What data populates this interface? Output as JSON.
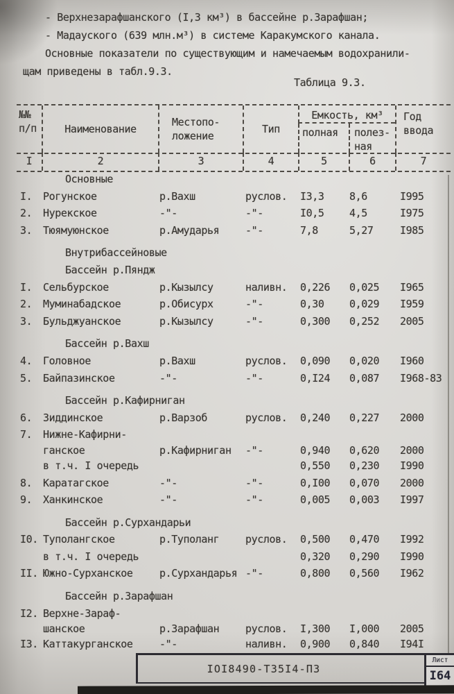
{
  "colors": {
    "paper": "#d6d4d0",
    "ink": "#36332f",
    "frame_ink": "#2c2b31"
  },
  "page": {
    "intro": [
      "- Верхнезарафшанского (I,3 км³) в бассейне р.Зарафшан;",
      "- Мадауского (639 млн.м³) в системе Каракумского канала.",
      "Основные показатели по существующим и намечаемым водохранили-",
      "щам приведены в табл.9.3."
    ],
    "caption": "Таблица 9.3."
  },
  "table": {
    "headers": {
      "num": [
        "№№",
        "п/п"
      ],
      "name": "Наименование",
      "location": [
        "Местопо-",
        "ложение"
      ],
      "type": "Тип",
      "capacity_group": "Емкость, км³",
      "capacity_full": "полная",
      "capacity_useful": [
        "полез-",
        "ная"
      ],
      "year": [
        "Год",
        "ввода"
      ]
    },
    "col_numbers": [
      "I",
      "2",
      "3",
      "4",
      "5",
      "6",
      "7"
    ],
    "sections": [
      {
        "headings": [
          "Основные"
        ],
        "rows": [
          {
            "num": "I.",
            "name": "Рогунское",
            "loc": "р.Вахш",
            "type": "руслов.",
            "full": "I3,3",
            "useful": "8,6",
            "year": "I995"
          },
          {
            "num": "2.",
            "name": "Нурекское",
            "loc": "-\"-",
            "type": "-\"-",
            "full": "I0,5",
            "useful": "4,5",
            "year": "I975"
          },
          {
            "num": "3.",
            "name": "Тюямуюнское",
            "loc": "р.Амударья",
            "type": "-\"-",
            "full": "7,8",
            "useful": "5,27",
            "year": "I985"
          }
        ]
      },
      {
        "headings": [
          "Внутрибассейновые",
          "Бассейн р.Пяндж"
        ],
        "rows": [
          {
            "num": "I.",
            "name": "Сельбурское",
            "loc": "р.Кызылсу",
            "type": "наливн.",
            "full": "0,226",
            "useful": "0,025",
            "year": "I965"
          },
          {
            "num": "2.",
            "name": "Муминабадское",
            "loc": "р.Обисурх",
            "type": "-\"-",
            "full": "0,30",
            "useful": "0,029",
            "year": "I959"
          },
          {
            "num": "3.",
            "name": "Бульджуанское",
            "loc": "р.Кызылсу",
            "type": "-\"-",
            "full": "0,300",
            "useful": "0,252",
            "year": "2005"
          }
        ]
      },
      {
        "headings": [
          "Бассейн р.Вахш"
        ],
        "rows": [
          {
            "num": "4.",
            "name": "Головное",
            "loc": "р.Вахш",
            "type": "руслов.",
            "full": "0,090",
            "useful": "0,020",
            "year": "I960"
          },
          {
            "num": "5.",
            "name": "Байпазинское",
            "loc": "-\"-",
            "type": "-\"-",
            "full": "0,I24",
            "useful": "0,087",
            "year": "I968-83"
          }
        ]
      },
      {
        "headings": [
          "Бассейн р.Кафирниган"
        ],
        "rows": [
          {
            "num": "6.",
            "name": "Зиддинское",
            "loc": "р.Варзоб",
            "type": "руслов.",
            "full": "0,240",
            "useful": "0,227",
            "year": "2000"
          },
          {
            "num": "7.",
            "name": "Нижне-Кафирни-",
            "name2": "ганское",
            "loc": "р.Кафирниган",
            "type": "-\"-",
            "full": "0,940",
            "useful": "0,620",
            "year": "2000"
          },
          {
            "sub": true,
            "name": "в т.ч. I очередь",
            "full": "0,550",
            "useful": "0,230",
            "year": "I990"
          },
          {
            "num": "8.",
            "name": "Каратагское",
            "loc": "-\"-",
            "type": "-\"-",
            "full": "0,I00",
            "useful": "0,070",
            "year": "2000"
          },
          {
            "num": "9.",
            "name": "Ханкинское",
            "loc": "-\"-",
            "type": "-\"-",
            "full": "0,005",
            "useful": "0,003",
            "year": "I997"
          }
        ]
      },
      {
        "headings": [
          "Бассейн р.Сурхандарьи"
        ],
        "rows": [
          {
            "num": "I0.",
            "name": "Туполангское",
            "loc": "р.Туполанг",
            "type": "руслов.",
            "full": "0,500",
            "useful": "0,470",
            "year": "I992"
          },
          {
            "sub": true,
            "name": "в т.ч. I очередь",
            "full": "0,320",
            "useful": "0,290",
            "year": "I990"
          },
          {
            "num": "II.",
            "name": "Южно-Сурханское",
            "loc": "р.Сурхандарья",
            "type": "-\"-",
            "full": "0,800",
            "useful": "0,560",
            "year": "I962"
          }
        ]
      },
      {
        "headings": [
          "Бассейн р.Зарафшан"
        ],
        "rows": [
          {
            "num": "I2.",
            "name": "Верхне-Зараф-",
            "name2": "шанское",
            "loc": "р.Зарафшан",
            "type": "руслов.",
            "full": "I,300",
            "useful": "I,000",
            "year": "2005"
          },
          {
            "num": "I3.",
            "name": "Каттакурганское",
            "loc": "-\"-",
            "type": "наливн.",
            "full": "0,900",
            "useful": "0,840",
            "year": "I94I"
          }
        ]
      }
    ]
  },
  "footer": {
    "doc_number": "IOI8490-Т35I4-ПЗ",
    "sheet_label": "Лист",
    "sheet_number": "I64"
  }
}
